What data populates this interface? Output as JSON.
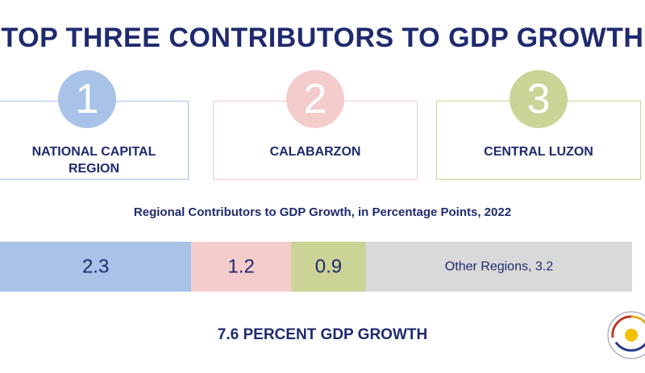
{
  "title": "TOP THREE CONTRIBUTORS TO GDP GROWTH",
  "top_regions": [
    {
      "rank": "1",
      "name": "NATIONAL CAPITAL REGION",
      "color": "#a9c3e8"
    },
    {
      "rank": "2",
      "name": "CALABARZON",
      "color": "#f4cccc"
    },
    {
      "rank": "3",
      "name": "CENTRAL LUZON",
      "color": "#cbd496"
    }
  ],
  "chart_data": {
    "type": "bar",
    "orientation": "horizontal-stacked",
    "title": "Regional Contributors to GDP Growth, in Percentage Points, 2022",
    "categories": [
      "National Capital Region",
      "CALABARZON",
      "Central Luzon",
      "Other Regions"
    ],
    "values": [
      2.3,
      1.2,
      0.9,
      3.2
    ],
    "labels": [
      "2.3",
      "1.2",
      "0.9",
      "Other Regions, 3.2"
    ],
    "colors": [
      "#a9c3e8",
      "#f4cccc",
      "#cbd496",
      "#d9d9d9"
    ],
    "total": 7.6
  },
  "footer": "7.6 PERCENT GDP GROWTH",
  "colors": {
    "navy": "#1f2a6e"
  }
}
